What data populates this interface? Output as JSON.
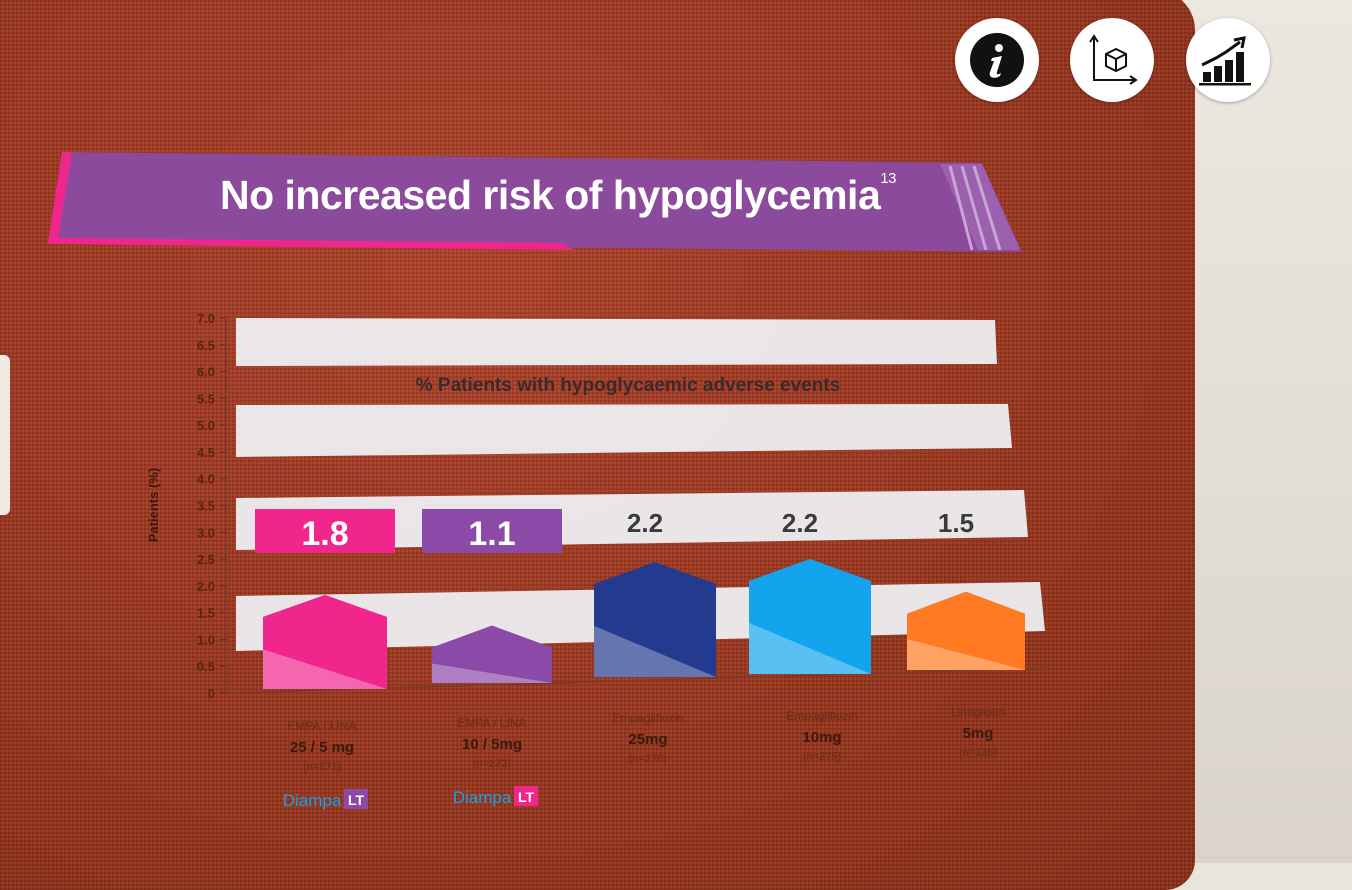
{
  "header": {
    "title": "No increased risk of hypoglycemia",
    "title_ref": "13"
  },
  "toolbar": [
    {
      "name": "info-button",
      "icon": "info-icon"
    },
    {
      "name": "3d-view-button",
      "icon": "cube-axes-icon"
    },
    {
      "name": "chart-view-button",
      "icon": "growth-chart-icon"
    }
  ],
  "chart_data": {
    "type": "bar",
    "title": "% Patients with hypoglycaemic adverse events",
    "ylabel": "Patients (%)",
    "ylim": [
      0,
      7.0
    ],
    "yticks": [
      "0",
      "0.5",
      "1.0",
      "1.5",
      "2.0",
      "2.5",
      "3.0",
      "3.5",
      "4.0",
      "4.5",
      "5.0",
      "5.5",
      "6.0",
      "6.5",
      "7.0"
    ],
    "categories": [
      {
        "name": "EMPA / LINA",
        "dose": "25 / 5 mg",
        "n": "(n=271)",
        "brand": "Diampa",
        "brand_badge": "LT"
      },
      {
        "name": "EMPA / LINA",
        "dose": "10 / 5mg",
        "n": "(n=272)",
        "brand": "Diampa",
        "brand_badge": "LT"
      },
      {
        "name": "Empagliflozin",
        "dose": "25mg",
        "n": "(n=276)",
        "brand": "",
        "brand_badge": ""
      },
      {
        "name": "Empagliflozin",
        "dose": "10mg",
        "n": "(n=275)",
        "brand": "",
        "brand_badge": ""
      },
      {
        "name": "Linagliptin",
        "dose": "5mg",
        "n": "(n=135)",
        "brand": "",
        "brand_badge": ""
      }
    ],
    "values": [
      1.8,
      1.1,
      2.2,
      2.2,
      1.5
    ],
    "value_labels": [
      "1.8",
      "1.1",
      "2.2",
      "2.2",
      "1.5"
    ],
    "colors": [
      "#f0268d",
      "#8c4aa8",
      "#233a8e",
      "#12a5ee",
      "#ff7a22"
    ],
    "label_badge_colors": [
      "#f0268d",
      "#8c4aa8",
      "",
      "",
      ""
    ],
    "grid": true
  }
}
